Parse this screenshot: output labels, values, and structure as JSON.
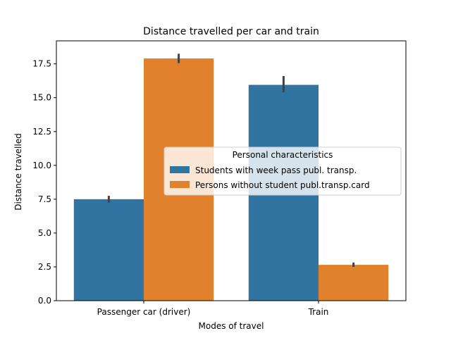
{
  "chart_data": {
    "type": "bar",
    "title": "Distance travelled per car and train",
    "xlabel": "Modes of travel",
    "ylabel": "Distance travelled",
    "categories": [
      "Passenger car (driver)",
      "Train"
    ],
    "ylim": [
      0,
      19.2
    ],
    "yticks": [
      0.0,
      2.5,
      5.0,
      7.5,
      10.0,
      12.5,
      15.0,
      17.5
    ],
    "ytick_labels": [
      "0.0",
      "2.5",
      "5.0",
      "7.5",
      "10.0",
      "12.5",
      "15.0",
      "17.5"
    ],
    "grid": false,
    "legend": {
      "title": "Personal characteristics",
      "placement": "center-right"
    },
    "series": [
      {
        "name": "Students with week pass publ. transp.",
        "color": "#3274a1",
        "values": [
          7.5,
          15.95
        ],
        "error_low": [
          7.25,
          15.4
        ],
        "error_high": [
          7.75,
          16.6
        ]
      },
      {
        "name": "Persons without student publ.transp.card",
        "color": "#e1812c",
        "values": [
          17.9,
          2.65
        ],
        "error_low": [
          17.55,
          2.5
        ],
        "error_high": [
          18.25,
          2.82
        ]
      }
    ]
  }
}
